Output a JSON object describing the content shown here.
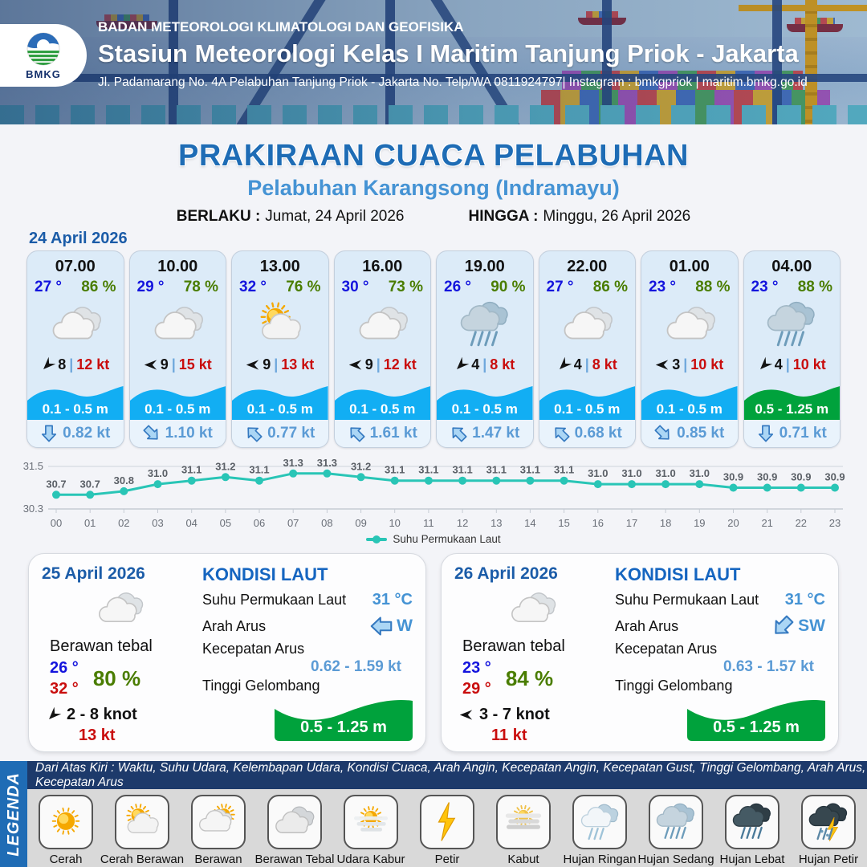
{
  "header": {
    "agency": "BADAN METEOROLOGI KLIMATOLOGI DAN GEOFISIKA",
    "station": "Stasiun Meteorologi Kelas I Maritim Tanjung Priok - Jakarta",
    "address": "Jl. Padamarang No. 4A Pelabuhan Tanjung Priok - Jakarta No. Telp/WA 0811924797| Instagram : bmkgpriok | maritim.bmkg.go.id",
    "logo_text": "BMKG"
  },
  "title": {
    "main": "PRAKIRAAN CUACA PELABUHAN",
    "subtitle": "Pelabuhan Karangsong (Indramayu)",
    "valid_from_label": "BERLAKU :",
    "valid_from": "Jumat, 24 April 2026",
    "valid_to_label": "HINGGA :",
    "valid_to": "Minggu, 26 April 2026"
  },
  "ui": {
    "divider": "|"
  },
  "forecast": {
    "date": "24 April 2026",
    "cards": [
      {
        "time": "07.00",
        "temp": "27 °",
        "humidity": "86 %",
        "icon": "berawan",
        "wind_rot": 315,
        "wind_speed": "8",
        "gust": "12 kt",
        "wave": "0.1 - 0.5 m",
        "wave_color": "blue",
        "current_rot": 180,
        "current": "0.82 kt"
      },
      {
        "time": "10.00",
        "temp": "29 °",
        "humidity": "78 %",
        "icon": "berawan",
        "wind_rot": 0,
        "wind_speed": "9",
        "gust": "15 kt",
        "wave": "0.1 - 0.5 m",
        "wave_color": "blue",
        "current_rot": 135,
        "current": "1.10 kt"
      },
      {
        "time": "13.00",
        "temp": "32 °",
        "humidity": "76 %",
        "icon": "cerah-berawan",
        "wind_rot": 0,
        "wind_speed": "9",
        "gust": "13 kt",
        "wave": "0.1 - 0.5 m",
        "wave_color": "blue",
        "current_rot": 315,
        "current": "0.77 kt"
      },
      {
        "time": "16.00",
        "temp": "30 °",
        "humidity": "73 %",
        "icon": "berawan",
        "wind_rot": 0,
        "wind_speed": "9",
        "gust": "12 kt",
        "wave": "0.1 - 0.5 m",
        "wave_color": "blue",
        "current_rot": 315,
        "current": "1.61 kt"
      },
      {
        "time": "19.00",
        "temp": "26 °",
        "humidity": "90 %",
        "icon": "hujan-sedang",
        "wind_rot": 315,
        "wind_speed": "4",
        "gust": "8 kt",
        "wave": "0.1 - 0.5 m",
        "wave_color": "blue",
        "current_rot": 315,
        "current": "1.47 kt"
      },
      {
        "time": "22.00",
        "temp": "27 °",
        "humidity": "86 %",
        "icon": "berawan",
        "wind_rot": 315,
        "wind_speed": "4",
        "gust": "8 kt",
        "wave": "0.1 - 0.5 m",
        "wave_color": "blue",
        "current_rot": 315,
        "current": "0.68 kt"
      },
      {
        "time": "01.00",
        "temp": "23 °",
        "humidity": "88 %",
        "icon": "berawan",
        "wind_rot": 0,
        "wind_speed": "3",
        "gust": "10 kt",
        "wave": "0.1 - 0.5 m",
        "wave_color": "blue",
        "current_rot": 135,
        "current": "0.85 kt"
      },
      {
        "time": "04.00",
        "temp": "23 °",
        "humidity": "88 %",
        "icon": "hujan-sedang",
        "wind_rot": 315,
        "wind_speed": "4",
        "gust": "10 kt",
        "wave": "0.5 - 1.25 m",
        "wave_color": "green",
        "current_rot": 180,
        "current": "0.71 kt"
      }
    ]
  },
  "chart_data": {
    "type": "line",
    "x": [
      "00",
      "01",
      "02",
      "03",
      "04",
      "05",
      "06",
      "07",
      "08",
      "09",
      "10",
      "11",
      "12",
      "13",
      "14",
      "15",
      "16",
      "17",
      "18",
      "19",
      "20",
      "21",
      "22",
      "23"
    ],
    "series": [
      {
        "name": "Suhu Permukaan Laut",
        "values": [
          30.7,
          30.7,
          30.8,
          31.0,
          31.1,
          31.2,
          31.1,
          31.3,
          31.3,
          31.2,
          31.1,
          31.1,
          31.1,
          31.1,
          31.1,
          31.1,
          31.0,
          31.0,
          31.0,
          31.0,
          30.9,
          30.9,
          30.9,
          30.9
        ]
      }
    ],
    "ylim": [
      30.3,
      31.5
    ],
    "yticks": [
      "31.5",
      "30.3"
    ],
    "line_color": "#29c5b6",
    "grid": "top-and-bottom-only",
    "legend_position": "bottom",
    "legend_label": "Suhu Permukaan Laut"
  },
  "days": [
    {
      "date": "25 April 2026",
      "condition": "Berawan tebal",
      "icon": "berawan",
      "temp_min": "26 °",
      "temp_max": "32 °",
      "humidity": "80 %",
      "wind_rot": 315,
      "wind_range": "2 - 8 knot",
      "gust": "13 kt",
      "sea": {
        "title": "KONDISI LAUT",
        "sst_label": "Suhu Permukaan Laut",
        "sst": "31 °C",
        "dir_label": "Arah Arus",
        "dir": "W",
        "dir_rot": 270,
        "speed_label": "Kecepatan Arus",
        "speed": "0.62 - 1.59 kt",
        "wave_label": "Tinggi Gelombang",
        "wave": "0.5 - 1.25 m"
      }
    },
    {
      "date": "26 April 2026",
      "condition": "Berawan tebal",
      "icon": "berawan",
      "temp_min": "23 °",
      "temp_max": "29 °",
      "humidity": "84 %",
      "wind_rot": 0,
      "wind_range": "3 - 7 knot",
      "gust": "11 kt",
      "sea": {
        "title": "KONDISI LAUT",
        "sst_label": "Suhu Permukaan Laut",
        "sst": "31 °C",
        "dir_label": "Arah Arus",
        "dir": "SW",
        "dir_rot": 225,
        "speed_label": "Kecepatan Arus",
        "speed": "0.63 - 1.57 kt",
        "wave_label": "Tinggi Gelombang",
        "wave": "0.5 - 1.25 m"
      }
    }
  ],
  "legend": {
    "title_vertical": "LEGENDA",
    "description": "Dari Atas Kiri : Waktu, Suhu Udara, Kelembapan Udara, Kondisi Cuaca, Arah Angin, Kecepatan Angin, Kecepatan Gust, Tinggi Gelombang, Arah Arus, Kecepatan Arus",
    "items": [
      {
        "label": "Cerah",
        "icon": "cerah"
      },
      {
        "label": "Cerah Berawan",
        "icon": "cerah-berawan"
      },
      {
        "label": "Berawan",
        "icon": "berawan-sun"
      },
      {
        "label": "Berawan Tebal",
        "icon": "berawan-tebal"
      },
      {
        "label": "Udara Kabur",
        "icon": "udara-kabur"
      },
      {
        "label": "Petir",
        "icon": "petir"
      },
      {
        "label": "Kabut",
        "icon": "kabut"
      },
      {
        "label": "Hujan Ringan",
        "icon": "hujan-ringan"
      },
      {
        "label": "Hujan Sedang",
        "icon": "hujan-sedang"
      },
      {
        "label": "Hujan Lebat",
        "icon": "hujan-lebat"
      },
      {
        "label": "Hujan Petir",
        "icon": "hujan-petir"
      }
    ]
  },
  "colors": {
    "accent_blue": "#1e6cb5",
    "subtitle_blue": "#4593d4",
    "temp_blue": "#1414dd",
    "humidity_green": "#4a7d00",
    "gust_red": "#c90d0d",
    "wave_blue": "#12aef3",
    "wave_green": "#00a23c",
    "current_blue": "#5b9bd5",
    "chart_teal": "#29c5b6",
    "navy_strip": "#1d3a6b",
    "legenda_strip": "#1f6cb5"
  }
}
